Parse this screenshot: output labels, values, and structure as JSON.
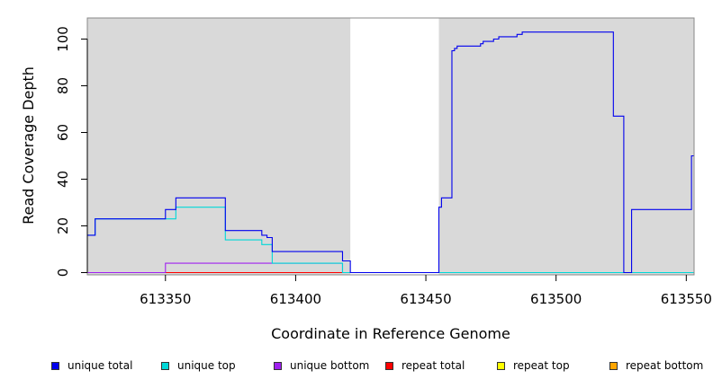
{
  "chart_data": {
    "type": "line",
    "xlabel": "Coordinate in Reference Genome",
    "ylabel": "Read Coverage Depth",
    "xlim": [
      613320,
      613553
    ],
    "ylim": [
      -3,
      108
    ],
    "x_ticks": [
      613350,
      613400,
      613450,
      613500,
      613550
    ],
    "y_ticks": [
      0,
      20,
      40,
      60,
      80,
      100
    ],
    "background": "#d9d9d9",
    "shaded_regions": [
      [
        613320,
        613421
      ],
      [
        613455,
        613553
      ]
    ],
    "grid": false,
    "legend_position": "bottom",
    "series": [
      {
        "name": "unique total",
        "color": "#0000ee",
        "points": [
          [
            613320,
            16
          ],
          [
            613323,
            16
          ],
          [
            613323,
            23
          ],
          [
            613350,
            23
          ],
          [
            613350,
            27
          ],
          [
            613354,
            27
          ],
          [
            613354,
            32
          ],
          [
            613373,
            32
          ],
          [
            613373,
            18
          ],
          [
            613387,
            18
          ],
          [
            613387,
            16
          ],
          [
            613389,
            16
          ],
          [
            613389,
            15
          ],
          [
            613391,
            15
          ],
          [
            613391,
            9
          ],
          [
            613418,
            9
          ],
          [
            613418,
            5
          ],
          [
            613421,
            5
          ],
          [
            613421,
            0
          ],
          [
            613455,
            0
          ],
          [
            613455,
            28
          ],
          [
            613456,
            28
          ],
          [
            613456,
            32
          ],
          [
            613460,
            32
          ],
          [
            613460,
            95
          ],
          [
            613461,
            95
          ],
          [
            613461,
            96
          ],
          [
            613462,
            96
          ],
          [
            613462,
            97
          ],
          [
            613471,
            97
          ],
          [
            613471,
            98
          ],
          [
            613472,
            98
          ],
          [
            613472,
            99
          ],
          [
            613476,
            99
          ],
          [
            613476,
            100
          ],
          [
            613478,
            100
          ],
          [
            613478,
            101
          ],
          [
            613485,
            101
          ],
          [
            613485,
            102
          ],
          [
            613487,
            102
          ],
          [
            613487,
            103
          ],
          [
            613522,
            103
          ],
          [
            613522,
            67
          ],
          [
            613526,
            67
          ],
          [
            613526,
            0
          ],
          [
            613529,
            0
          ],
          [
            613529,
            27
          ],
          [
            613552,
            27
          ],
          [
            613552,
            50
          ],
          [
            613553,
            50
          ]
        ]
      },
      {
        "name": "unique top",
        "color": "#00d8d8",
        "points": [
          [
            613320,
            16
          ],
          [
            613323,
            16
          ],
          [
            613323,
            23
          ],
          [
            613354,
            23
          ],
          [
            613354,
            28
          ],
          [
            613373,
            28
          ],
          [
            613373,
            14
          ],
          [
            613387,
            14
          ],
          [
            613387,
            12
          ],
          [
            613391,
            12
          ],
          [
            613391,
            4
          ],
          [
            613418,
            4
          ],
          [
            613418,
            0
          ],
          [
            613553,
            0
          ]
        ]
      },
      {
        "name": "unique bottom",
        "color": "#a020f0",
        "points": [
          [
            613320,
            0
          ],
          [
            613350,
            0
          ],
          [
            613350,
            4
          ],
          [
            613418,
            4
          ],
          [
            613418,
            0
          ],
          [
            613553,
            0
          ]
        ]
      },
      {
        "name": "repeat total",
        "color": "#ff0000",
        "points": [
          [
            613320,
            0
          ],
          [
            613553,
            0
          ]
        ]
      },
      {
        "name": "repeat top",
        "color": "#ffff00",
        "points": [
          [
            613320,
            0
          ],
          [
            613553,
            0
          ]
        ]
      },
      {
        "name": "repeat bottom",
        "color": "#ffa500",
        "points": [
          [
            613350,
            0
          ],
          [
            613418,
            0
          ]
        ]
      }
    ]
  }
}
